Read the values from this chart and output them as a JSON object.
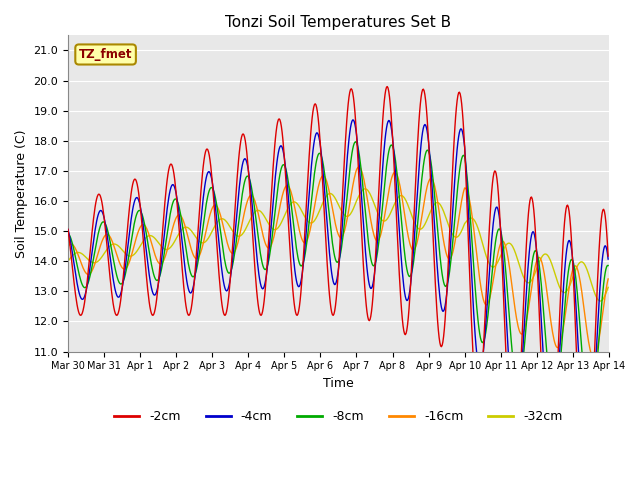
{
  "title": "Tonzi Soil Temperatures Set B",
  "xlabel": "Time",
  "ylabel": "Soil Temperature (C)",
  "ylim": [
    11.0,
    21.5
  ],
  "yticks": [
    11.0,
    12.0,
    13.0,
    14.0,
    15.0,
    16.0,
    17.0,
    18.0,
    19.0,
    20.0,
    21.0
  ],
  "colors": {
    "-2cm": "#dd0000",
    "-4cm": "#0000cc",
    "-8cm": "#00aa00",
    "-16cm": "#ff8800",
    "-32cm": "#cccc00"
  },
  "annotation_text": "TZ_fmet",
  "annotation_bg": "#ffffaa",
  "annotation_border": "#aa8800",
  "background_color": "#e8e8e8",
  "x_tick_labels": [
    "Mar 30",
    "Mar 31",
    "Apr 1",
    "Apr 2",
    "Apr 3",
    "Apr 4",
    "Apr 5",
    "Apr 6",
    "Apr 7",
    "Apr 8",
    "Apr 9",
    "Apr 10",
    "Apr 11",
    "Apr 12",
    "Apr 13",
    "Apr 14"
  ],
  "n_days": 15,
  "ppd": 48
}
